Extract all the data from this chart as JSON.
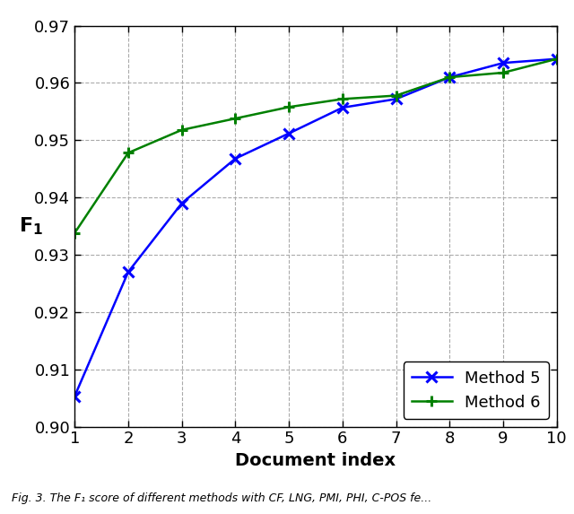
{
  "x": [
    1,
    2,
    3,
    4,
    5,
    6,
    7,
    8,
    9,
    10
  ],
  "method5": [
    0.9053,
    0.927,
    0.939,
    0.9468,
    0.9512,
    0.9557,
    0.9572,
    0.961,
    0.9635,
    0.9642
  ],
  "method6": [
    0.9338,
    0.9478,
    0.9518,
    0.9538,
    0.9558,
    0.9572,
    0.9578,
    0.961,
    0.9618,
    0.9642
  ],
  "method5_color": "#0000FF",
  "method6_color": "#008000",
  "xlabel": "Document index",
  "ylabel": "F",
  "ylabel_sub": "1",
  "xlim": [
    1,
    10
  ],
  "ylim": [
    0.9,
    0.97
  ],
  "yticks": [
    0.9,
    0.91,
    0.92,
    0.93,
    0.94,
    0.95,
    0.96,
    0.97
  ],
  "xticks": [
    1,
    2,
    3,
    4,
    5,
    6,
    7,
    8,
    9,
    10
  ],
  "legend_labels": [
    "Method 5",
    "Method 6"
  ],
  "legend_loc": "lower right",
  "background_color": "#ffffff",
  "grid_color": "#aaaaaa",
  "linewidth": 1.8,
  "markersize": 9,
  "caption": "Fig. 3. The F₁ score of different methods with CF, LNG, PMI, PHI, C-POS fe..."
}
